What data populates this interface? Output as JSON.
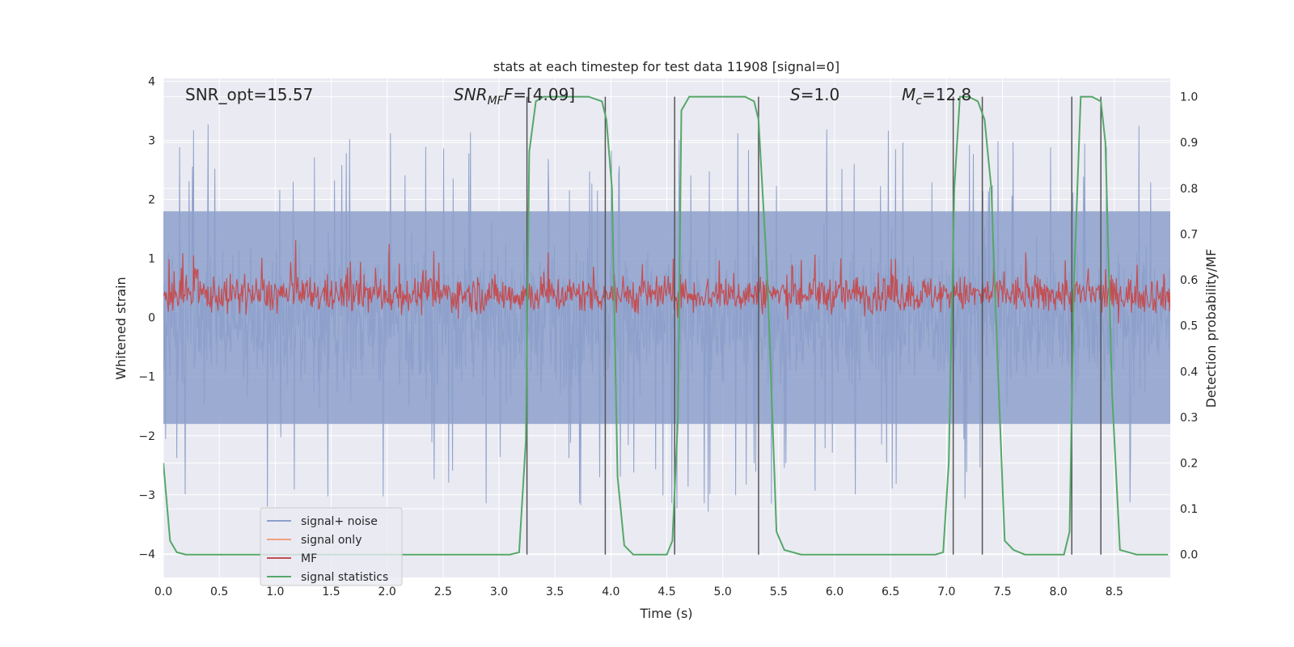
{
  "chart_data": {
    "type": "line",
    "title": "stats at each timestep for test data 11908 [signal=0]",
    "xlabel": "Time (s)",
    "ylabel": "Whitened strain",
    "y2label": "Detection probability/MF",
    "xlim": [
      0.0,
      9.0
    ],
    "ylim": [
      -4.4,
      4.05
    ],
    "y2lim": [
      -0.05,
      1.04
    ],
    "xticks": [
      "0.0",
      "0.5",
      "1.0",
      "1.5",
      "2.0",
      "2.5",
      "3.0",
      "3.5",
      "4.0",
      "4.5",
      "5.0",
      "5.5",
      "6.0",
      "6.5",
      "7.0",
      "7.5",
      "8.0",
      "8.5"
    ],
    "yticks": [
      "−4",
      "−3",
      "−2",
      "−1",
      "0",
      "1",
      "2",
      "3",
      "4"
    ],
    "y2ticks": [
      "0.0",
      "0.1",
      "0.2",
      "0.3",
      "0.4",
      "0.5",
      "0.6",
      "0.7",
      "0.8",
      "0.9",
      "1.0"
    ],
    "grid": true,
    "background": "#eaeaf2",
    "annotations": {
      "snr_opt": "SNR_opt=15.57",
      "snr_mf_main": "SNR",
      "snr_mf_sub": "MF",
      "snr_mf_value": "=[4.09]",
      "s_main": "S",
      "s_value": "=1.0",
      "mc_main": "M",
      "mc_sub": "c",
      "mc_value": "=12.8"
    },
    "legend": {
      "placement": "lower-left",
      "entries": [
        {
          "label": "signal+ noise",
          "color": "#8da0cb"
        },
        {
          "label": "signal only",
          "color": "#f0a080"
        },
        {
          "label": "MF",
          "color": "#c44e52"
        },
        {
          "label": "signal statistics",
          "color": "#55a868"
        }
      ]
    },
    "series": [
      {
        "name": "signal statistics",
        "axis": "right",
        "color": "#55a868",
        "x": [
          0.0,
          0.06,
          0.12,
          0.2,
          0.3,
          0.5,
          1.0,
          1.5,
          2.0,
          2.5,
          3.0,
          3.1,
          3.18,
          3.24,
          3.27,
          3.33,
          3.4,
          3.6,
          3.8,
          3.92,
          3.96,
          4.01,
          4.06,
          4.12,
          4.2,
          4.5,
          4.55,
          4.6,
          4.63,
          4.7,
          5.0,
          5.2,
          5.28,
          5.32,
          5.4,
          5.48,
          5.55,
          5.7,
          6.0,
          6.5,
          6.9,
          6.97,
          7.02,
          7.07,
          7.12,
          7.2,
          7.28,
          7.34,
          7.4,
          7.46,
          7.52,
          7.6,
          7.7,
          7.9,
          8.05,
          8.1,
          8.14,
          8.2,
          8.3,
          8.38,
          8.42,
          8.48,
          8.55,
          8.7,
          8.98
        ],
        "values": [
          0.2,
          0.03,
          0.005,
          0.0,
          0.0,
          0.0,
          0.0,
          0.0,
          0.0,
          0.0,
          0.0,
          0.0,
          0.005,
          0.25,
          0.88,
          0.99,
          1.0,
          1.0,
          1.0,
          0.99,
          0.95,
          0.8,
          0.17,
          0.02,
          0.0,
          0.0,
          0.03,
          0.3,
          0.97,
          1.0,
          1.0,
          1.0,
          0.99,
          0.95,
          0.6,
          0.05,
          0.01,
          0.0,
          0.0,
          0.0,
          0.0,
          0.005,
          0.2,
          0.8,
          1.0,
          1.0,
          0.99,
          0.95,
          0.8,
          0.4,
          0.03,
          0.01,
          0.0,
          0.0,
          0.0,
          0.05,
          0.6,
          1.0,
          1.0,
          0.99,
          0.9,
          0.35,
          0.01,
          0.0,
          0.0
        ]
      }
    ],
    "vlines": [
      3.25,
      3.95,
      4.57,
      5.32,
      7.06,
      7.32,
      8.12,
      8.38
    ],
    "noise_series": {
      "name": "signal+ noise",
      "color": "#8da0cb",
      "band": [
        -1.8,
        1.8
      ],
      "extremes": [
        -4.0,
        3.4
      ]
    },
    "mf_series": {
      "name": "MF",
      "color": "#c44e52",
      "band_right_axis": [
        0.52,
        0.62
      ]
    }
  }
}
